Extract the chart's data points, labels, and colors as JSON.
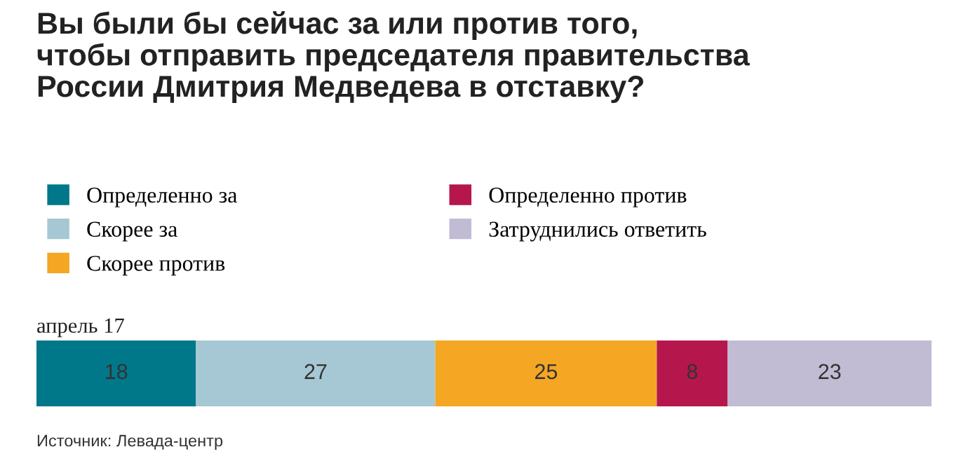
{
  "chart_data": {
    "type": "bar",
    "orientation": "horizontal",
    "stacked": true,
    "data_labels": true,
    "legend": "top left",
    "title": "Вы были бы сейчас за или против того,\nчтобы отправить председателя правительства\nРоссии Дмитрия Медведева в отставку?",
    "categories": [
      "апрель 17"
    ],
    "series": [
      {
        "name": "Определенно за",
        "color": "#00788a",
        "values": [
          18
        ]
      },
      {
        "name": "Скорее за",
        "color": "#a5c8d4",
        "values": [
          27
        ]
      },
      {
        "name": "Скорее против",
        "color": "#f5a623",
        "values": [
          25
        ]
      },
      {
        "name": "Определенно против",
        "color": "#b5174d",
        "values": [
          8
        ]
      },
      {
        "name": "Затруднились ответить",
        "color": "#c1bcd4",
        "values": [
          23
        ]
      }
    ],
    "annotations": [
      "Источник: Левада-центр"
    ]
  }
}
